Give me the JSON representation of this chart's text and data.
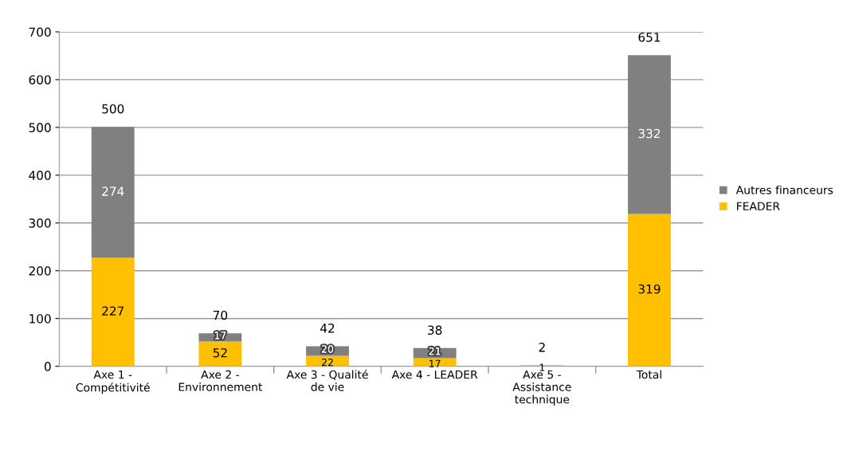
{
  "chart_data": {
    "type": "bar",
    "stacked": true,
    "categories": [
      "Axe 1 -\nCompétitivité",
      "Axe 2 -\nEnvironnement",
      "Axe 3 - Qualité\nde vie",
      "Axe 4 - LEADER",
      "Axe 5 -\nAssistance\ntechnique",
      "Total"
    ],
    "series": [
      {
        "name": "FEADER",
        "color": "#ffc000",
        "values": [
          227,
          52,
          22,
          17,
          1,
          319
        ],
        "value_labels": [
          "227",
          "52",
          "22",
          "17",
          "1",
          "319"
        ]
      },
      {
        "name": "Autres financeurs",
        "color": "#808080",
        "values": [
          274,
          17,
          20,
          21,
          1,
          332
        ],
        "value_labels": [
          "274",
          "17",
          "20",
          "21",
          null,
          "332"
        ]
      }
    ],
    "totals": [
      "500",
      "70",
      "42",
      "38",
      "2",
      "651"
    ],
    "ylim": [
      0,
      700
    ],
    "yticks": [
      0,
      100,
      200,
      300,
      400,
      500,
      600,
      700
    ],
    "grid": "y",
    "legend": "right"
  }
}
